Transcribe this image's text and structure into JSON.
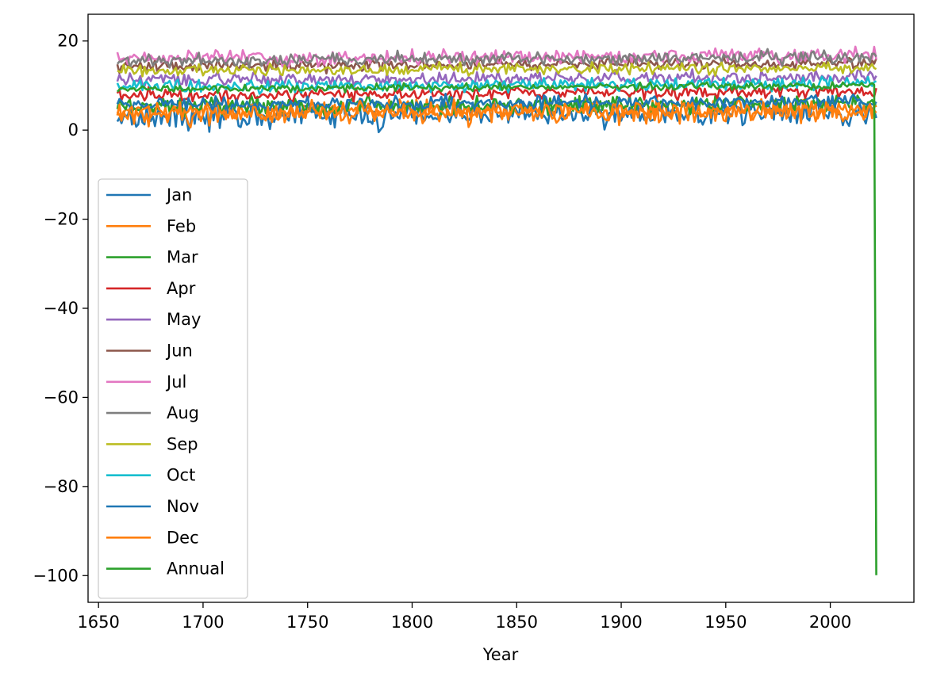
{
  "chart_data": {
    "type": "line",
    "title": "",
    "xlabel": "Year",
    "ylabel": "",
    "xlim": [
      1645,
      2040
    ],
    "ylim": [
      -106,
      26
    ],
    "xticks": [
      1650,
      1700,
      1750,
      1800,
      1850,
      1900,
      1950,
      2000
    ],
    "yticks": [
      20,
      0,
      -20,
      -40,
      -60,
      -80,
      -100
    ],
    "xtick_labels": [
      "1650",
      "1700",
      "1750",
      "1800",
      "1850",
      "1900",
      "1950",
      "2000"
    ],
    "ytick_labels": [
      "20",
      "0",
      "−20",
      "−40",
      "−60",
      "−80",
      "−100"
    ],
    "grid": false,
    "legend_position": "center-left",
    "x_start": 1659,
    "x_end": 2022,
    "series": [
      {
        "name": "Jan",
        "color": "#1f77b4",
        "mean": 3.2,
        "variability": 1.9
      },
      {
        "name": "Feb",
        "color": "#ff7f0e",
        "mean": 3.8,
        "variability": 1.7
      },
      {
        "name": "Mar",
        "color": "#2ca02c",
        "mean": 5.3,
        "variability": 1.2
      },
      {
        "name": "Apr",
        "color": "#d62728",
        "mean": 7.9,
        "variability": 0.9
      },
      {
        "name": "May",
        "color": "#9467bd",
        "mean": 11.2,
        "variability": 0.9
      },
      {
        "name": "Jun",
        "color": "#8c564b",
        "mean": 14.3,
        "variability": 0.8
      },
      {
        "name": "Jul",
        "color": "#e377c2",
        "mean": 16.0,
        "variability": 1.0
      },
      {
        "name": "Aug",
        "color": "#7f7f7f",
        "mean": 15.6,
        "variability": 0.9
      },
      {
        "name": "Sep",
        "color": "#bcbd22",
        "mean": 13.3,
        "variability": 0.8
      },
      {
        "name": "Oct",
        "color": "#17becf",
        "mean": 9.7,
        "variability": 0.9
      },
      {
        "name": "Nov",
        "color": "#1f77b4",
        "mean": 5.6,
        "variability": 1.0
      },
      {
        "name": "Dec",
        "color": "#ff7f0e",
        "mean": 3.9,
        "variability": 1.3
      },
      {
        "name": "Annual",
        "color": "#2ca02c",
        "mean": 9.2,
        "variability": 0.5,
        "final_value": -99.9
      }
    ]
  }
}
